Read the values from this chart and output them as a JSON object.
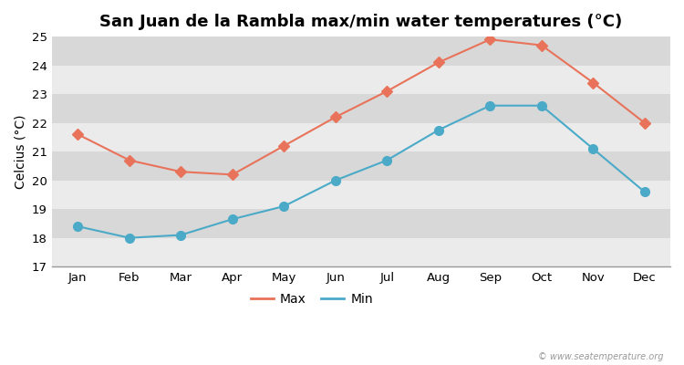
{
  "title": "San Juan de la Rambla max/min water temperatures (°C)",
  "ylabel": "Celcius (°C)",
  "months": [
    "Jan",
    "Feb",
    "Mar",
    "Apr",
    "May",
    "Jun",
    "Jul",
    "Aug",
    "Sep",
    "Oct",
    "Nov",
    "Dec"
  ],
  "max_temps": [
    21.6,
    20.7,
    20.3,
    20.2,
    21.2,
    22.2,
    23.1,
    24.1,
    24.9,
    24.7,
    23.4,
    22.0
  ],
  "min_temps": [
    18.4,
    18.0,
    18.1,
    18.65,
    19.1,
    20.0,
    20.7,
    21.75,
    22.6,
    22.6,
    21.1,
    19.6
  ],
  "max_color": "#e8735a",
  "min_color": "#4aaac8",
  "fig_bg_color": "#ffffff",
  "band_light": "#ebebeb",
  "band_dark": "#d8d8d8",
  "ylim": [
    17,
    25
  ],
  "yticks": [
    17,
    18,
    19,
    20,
    21,
    22,
    23,
    24,
    25
  ],
  "legend_labels": [
    "Max",
    "Min"
  ],
  "watermark": "© www.seatemperature.org",
  "title_fontsize": 13,
  "label_fontsize": 10,
  "tick_fontsize": 9.5,
  "linewidth": 1.5,
  "markersize_max": 6,
  "markersize_min": 7
}
